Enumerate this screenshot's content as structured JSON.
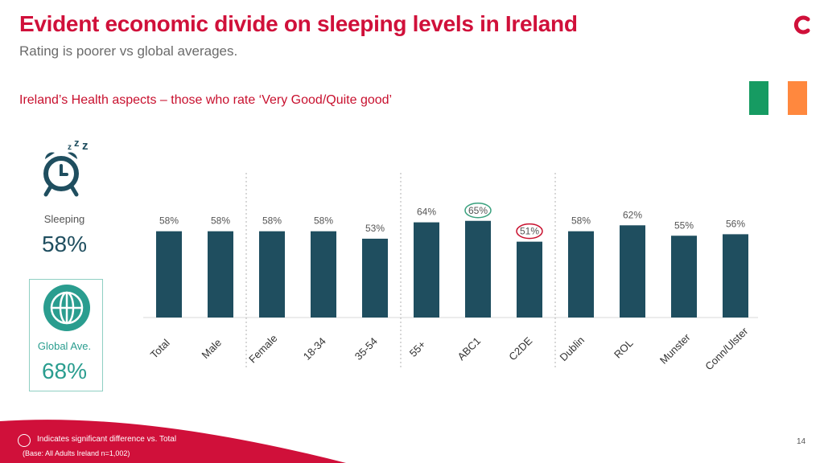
{
  "header": {
    "title": "Evident economic divide on sleeping levels in Ireland",
    "subtitle": "Rating is poorer vs global averages.",
    "section_title": "Ireland’s Health aspects – those who rate ‘Very Good/Quite good’"
  },
  "colors": {
    "brand": "#d0103a",
    "bar": "#1f4e5f",
    "teal": "#2a9d8f",
    "sig_green": "#3aa17e",
    "sig_red": "#c8102e",
    "flag_green": "#169b62",
    "flag_orange": "#ff883e"
  },
  "sidebar": {
    "metric_label": "Sleeping",
    "metric_value": "58%",
    "global_label": "Global Ave.",
    "global_value": "68%"
  },
  "icons": {
    "logo": "brand-logo-icon",
    "sleep": "alarm-clock-zzz-icon",
    "global": "globe-icon"
  },
  "chart_data": {
    "type": "bar",
    "categories": [
      "Total",
      "Male",
      "Female",
      "18-34",
      "35-54",
      "55+",
      "ABC1",
      "C2DE",
      "Dublin",
      "ROL",
      "Munster",
      "Conn/Ulster"
    ],
    "values": [
      58,
      58,
      58,
      58,
      53,
      64,
      65,
      51,
      58,
      62,
      55,
      56
    ],
    "labels": [
      "58%",
      "58%",
      "58%",
      "58%",
      "53%",
      "64%",
      "65%",
      "51%",
      "58%",
      "62%",
      "55%",
      "56%"
    ],
    "significance": [
      "none",
      "none",
      "none",
      "none",
      "none",
      "none",
      "higher",
      "lower",
      "none",
      "none",
      "none",
      "none"
    ],
    "ylim": [
      0,
      100
    ]
  },
  "footer": {
    "legend_text": "Indicates significant difference vs. Total",
    "base_text": "(Base: All Adults Ireland  n=1,002)",
    "page_number": "14"
  }
}
